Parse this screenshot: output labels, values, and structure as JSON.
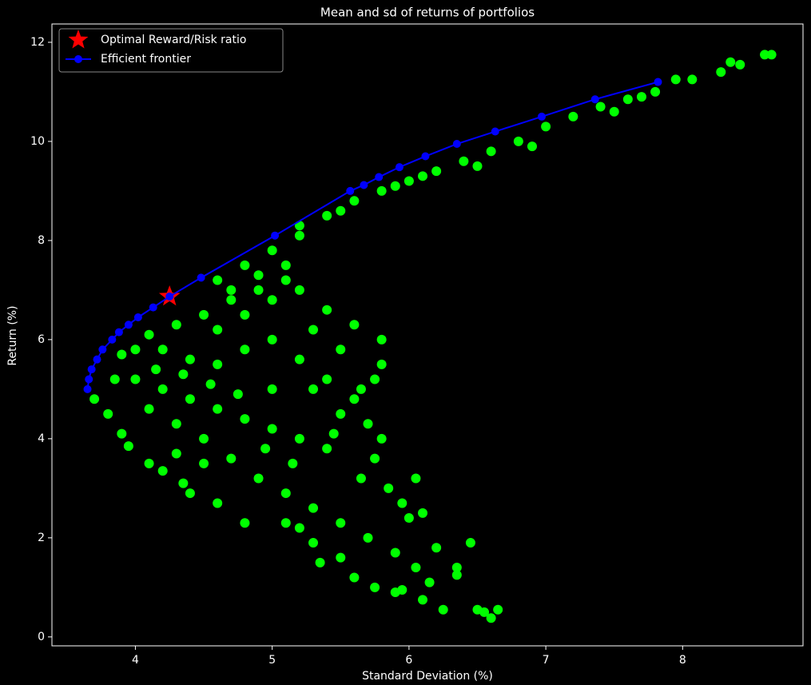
{
  "chart_data": {
    "type": "scatter",
    "title": "Mean and sd of returns of portfolios",
    "xlabel": "Standard Deviation (%)",
    "ylabel": "Return (%)",
    "xlim": [
      3.39,
      8.88
    ],
    "ylim": [
      -0.18,
      12.37
    ],
    "xticks": [
      4,
      5,
      6,
      7,
      8
    ],
    "yticks": [
      0,
      2,
      4,
      6,
      8,
      10,
      12
    ],
    "legend": "upper left",
    "series": [
      {
        "color": "#00ff00",
        "x": [
          4.6,
          4.8,
          5.0,
          5.2,
          5.4,
          5.6,
          5.8,
          6.0,
          6.2,
          6.4,
          6.6,
          6.8,
          7.0,
          7.2,
          7.4,
          7.6,
          7.8,
          7.95,
          8.07,
          8.28,
          8.35,
          8.42,
          8.6,
          8.65,
          6.1,
          6.5,
          6.9,
          5.5,
          5.2,
          5.9,
          7.5,
          7.7,
          3.7,
          3.8,
          3.9,
          3.95,
          4.1,
          4.2,
          4.35,
          4.4,
          4.6,
          4.8,
          5.1,
          5.3,
          5.5,
          5.6,
          5.75,
          5.9,
          6.1,
          6.25,
          6.55,
          6.6,
          6.65,
          6.35,
          6.2,
          6.0,
          5.85,
          5.75,
          5.7,
          5.6,
          5.75,
          5.8,
          5.8,
          5.6,
          5.4,
          5.2,
          5.1,
          4.9,
          4.7,
          4.5,
          4.3,
          4.1,
          3.9,
          4.0,
          4.2,
          4.4,
          4.6,
          4.8,
          5.0,
          5.2,
          5.4,
          4.6,
          4.8,
          5.0,
          5.2,
          5.4,
          5.0,
          4.4,
          4.2,
          4.5,
          4.7,
          4.9,
          5.1,
          5.3,
          5.5,
          5.7,
          5.9,
          6.05,
          5.65,
          5.95,
          6.1,
          5.5,
          5.3,
          4.3,
          4.1,
          3.85,
          4.0,
          4.6,
          4.8,
          5.0,
          5.1,
          4.9,
          4.7,
          5.3,
          5.5,
          5.65,
          5.45,
          5.15,
          4.95,
          4.75,
          4.55,
          4.35,
          4.15,
          6.5,
          6.15,
          5.35,
          5.2,
          4.5,
          4.3,
          5.8,
          6.05,
          6.45,
          6.35,
          5.95
        ],
        "values": [
          7.2,
          7.5,
          7.8,
          8.1,
          8.5,
          8.8,
          9.0,
          9.2,
          9.4,
          9.6,
          9.8,
          10.0,
          10.3,
          10.5,
          10.7,
          10.85,
          11.0,
          11.25,
          11.25,
          11.4,
          11.6,
          11.55,
          11.75,
          11.75,
          9.3,
          9.5,
          9.9,
          8.6,
          8.3,
          9.1,
          10.6,
          10.9,
          4.8,
          4.5,
          4.1,
          3.85,
          3.5,
          3.35,
          3.1,
          2.9,
          2.7,
          2.3,
          2.3,
          1.9,
          1.6,
          1.2,
          1.0,
          0.9,
          0.75,
          0.55,
          0.5,
          0.38,
          0.55,
          1.4,
          1.8,
          2.4,
          3.0,
          3.6,
          4.3,
          4.8,
          5.2,
          5.5,
          6.0,
          6.3,
          6.6,
          7.0,
          7.5,
          7.0,
          6.8,
          6.5,
          6.3,
          6.1,
          5.7,
          5.2,
          5.0,
          4.8,
          4.6,
          4.4,
          4.2,
          4.0,
          3.8,
          5.5,
          5.8,
          6.0,
          5.6,
          5.2,
          5.0,
          5.6,
          5.8,
          4.0,
          3.6,
          3.2,
          2.9,
          2.6,
          2.3,
          2.0,
          1.7,
          1.4,
          3.2,
          2.7,
          2.5,
          4.5,
          5.0,
          4.3,
          4.6,
          5.2,
          5.8,
          6.2,
          6.5,
          6.8,
          7.2,
          7.3,
          7.0,
          6.2,
          5.8,
          5.0,
          4.1,
          3.5,
          3.8,
          4.9,
          5.1,
          5.3,
          5.4,
          0.55,
          1.1,
          1.5,
          2.2,
          3.5,
          3.7,
          4.0,
          3.2,
          1.9,
          1.25,
          0.95
        ]
      },
      {
        "name": "Optimal Reward/Risk ratio",
        "color": "#ff0000",
        "marker": "star",
        "x": [
          4.25
        ],
        "values": [
          6.87
        ]
      },
      {
        "name": "Efficient frontier",
        "color": "#0000ff",
        "marker": "line",
        "x": [
          3.65,
          3.66,
          3.68,
          3.72,
          3.76,
          3.83,
          3.88,
          3.95,
          4.02,
          4.13,
          4.25,
          4.48,
          5.02,
          5.57,
          5.67,
          5.78,
          5.93,
          6.12,
          6.35,
          6.63,
          6.97,
          7.36,
          7.82
        ],
        "values": [
          5.0,
          5.2,
          5.4,
          5.6,
          5.8,
          6.0,
          6.15,
          6.3,
          6.45,
          6.65,
          6.87,
          7.25,
          8.1,
          9.0,
          9.12,
          9.28,
          9.48,
          9.7,
          9.95,
          10.2,
          10.5,
          10.85,
          11.2
        ]
      }
    ]
  }
}
